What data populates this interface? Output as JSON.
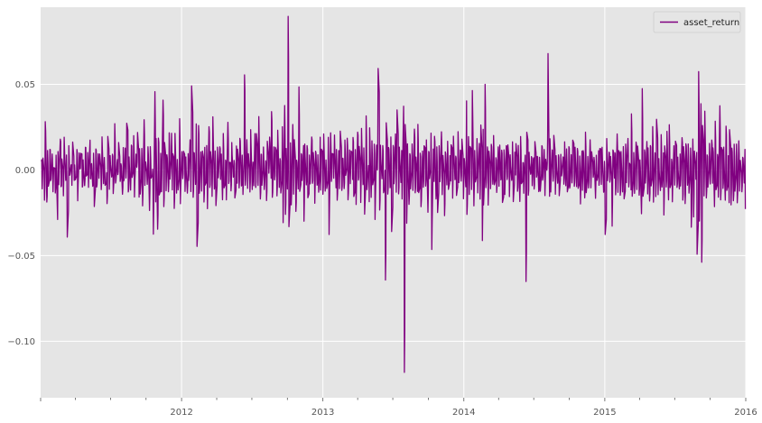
{
  "chart_data": {
    "type": "line",
    "title": "",
    "xlabel": "",
    "ylabel": "",
    "xlim": [
      "2011-01-01",
      "2016-01-01"
    ],
    "ylim": [
      -0.133,
      0.095
    ],
    "grid": true,
    "legend_position": "top-right",
    "y_ticks": [
      {
        "value": 0.05,
        "label": "0.05"
      },
      {
        "value": 0.0,
        "label": "0.00"
      },
      {
        "value": -0.05,
        "label": "−0.05"
      },
      {
        "value": -0.1,
        "label": "−0.10"
      }
    ],
    "x_major_ticks": [
      {
        "value": "2012-01-01",
        "label": "2012"
      },
      {
        "value": "2013-01-01",
        "label": "2013"
      },
      {
        "value": "2014-01-01",
        "label": "2014"
      },
      {
        "value": "2015-01-01",
        "label": "2015"
      },
      {
        "value": "2016-01-01",
        "label": "2016"
      }
    ],
    "series": [
      {
        "name": "asset_return",
        "color": "#800080",
        "x_start": "2011-01-03",
        "x_end": "2015-12-31",
        "frequency": "business-daily",
        "values": [
          0.008,
          -0.01,
          0.007,
          -0.022,
          0.033,
          -0.02,
          0.012,
          -0.015,
          0.016,
          -0.008,
          0.01,
          -0.012,
          0.006,
          -0.019,
          0.014,
          -0.034,
          0.009,
          -0.006,
          0.02,
          -0.011,
          0.005,
          -0.015,
          0.022,
          -0.009,
          0.011,
          -0.044,
          0.017,
          -0.007,
          0.009,
          -0.013,
          0.021,
          -0.011,
          0.003,
          -0.008,
          0.016,
          -0.018,
          0.01,
          -0.003,
          0.014,
          -0.011,
          0.007,
          -0.016,
          0.018,
          -0.006,
          0.012,
          -0.013,
          0.024,
          -0.008,
          0.004,
          -0.01,
          0.009,
          -0.02,
          0.015,
          -0.012,
          0.008,
          -0.004,
          0.013,
          -0.017,
          0.02,
          -0.009,
          0.011,
          -0.014,
          0.006,
          -0.021,
          0.017,
          -0.01,
          0.009,
          -0.007,
          0.014,
          -0.016,
          0.03,
          -0.012,
          0.008,
          -0.005,
          0.019,
          -0.013,
          0.01,
          -0.02,
          0.015,
          -0.006,
          0.012,
          -0.009,
          0.031,
          -0.014,
          0.007,
          -0.011,
          0.018,
          -0.008,
          0.022,
          -0.017,
          0.012,
          -0.004,
          0.026,
          -0.019,
          0.01,
          -0.012,
          0.014,
          -0.024,
          0.028,
          -0.008,
          0.006,
          -0.013,
          0.021,
          -0.027,
          0.016,
          -0.01,
          0.012,
          -0.054,
          0.059,
          -0.03,
          0.018,
          -0.038,
          0.022,
          -0.015,
          0.01,
          -0.02,
          0.048,
          -0.025,
          0.017,
          -0.012,
          0.014,
          -0.019,
          0.024,
          -0.009,
          0.03,
          -0.018,
          0.011,
          -0.024,
          0.02,
          -0.012,
          0.008,
          -0.016,
          0.031,
          -0.021,
          0.013,
          -0.01,
          0.018,
          -0.015,
          0.012,
          -0.022,
          0.016,
          -0.008,
          0.021,
          -0.013,
          0.051,
          -0.02,
          0.014,
          -0.011,
          0.033,
          -0.056,
          0.033,
          -0.017,
          0.012,
          -0.014,
          0.019,
          -0.026,
          0.015,
          -0.009,
          0.013,
          -0.021,
          0.028,
          -0.012,
          0.01,
          -0.017,
          0.036,
          -0.015,
          0.012,
          -0.024,
          0.017,
          -0.011,
          0.021,
          -0.008,
          0.014,
          -0.016,
          0.022,
          -0.013,
          0.01,
          -0.019,
          0.03,
          -0.012,
          0.009,
          -0.015,
          0.018,
          -0.01,
          0.012,
          -0.022,
          0.016,
          -0.008,
          0.011,
          -0.014,
          0.021,
          -0.01,
          0.008,
          -0.016,
          0.062,
          -0.012,
          0.018,
          -0.011,
          0.014,
          -0.02,
          0.026,
          -0.013,
          0.009,
          -0.018,
          0.022,
          -0.012,
          0.019,
          -0.009,
          0.034,
          -0.021,
          0.014,
          -0.01,
          0.016,
          -0.017,
          0.012,
          -0.023,
          0.02,
          -0.011,
          0.028,
          -0.014,
          0.037,
          -0.016,
          0.013,
          -0.01,
          0.017,
          -0.018,
          0.024,
          -0.009,
          0.011,
          -0.02,
          0.032,
          -0.041,
          0.051,
          -0.035,
          0.014,
          -0.012,
          0.089,
          -0.032,
          0.018,
          -0.024,
          0.026,
          -0.015,
          0.022,
          -0.03,
          0.012,
          -0.019,
          0.058,
          -0.02,
          0.016,
          -0.011,
          0.022,
          -0.029,
          0.015,
          -0.012,
          0.018,
          -0.017,
          0.009,
          -0.014,
          0.024,
          -0.01,
          0.012,
          -0.021,
          0.016,
          -0.013,
          0.011,
          -0.018,
          0.026,
          -0.009,
          0.014,
          -0.016,
          0.02,
          -0.011,
          0.008,
          -0.015,
          0.022,
          -0.043,
          0.026,
          -0.012,
          0.016,
          -0.009,
          0.027,
          -0.018,
          0.012,
          -0.02,
          0.015,
          -0.011,
          0.024,
          -0.016,
          0.011,
          -0.013,
          0.019,
          -0.01,
          0.026,
          -0.022,
          0.013,
          -0.009,
          0.017,
          -0.012,
          0.021,
          -0.016,
          0.011,
          -0.019,
          0.025,
          -0.008,
          0.014,
          -0.021,
          0.029,
          -0.013,
          0.016,
          -0.034,
          0.04,
          -0.018,
          0.012,
          -0.026,
          0.022,
          -0.015,
          0.018,
          -0.012,
          0.021,
          -0.031,
          0.016,
          -0.01,
          0.072,
          -0.028,
          0.017,
          -0.013,
          0.022,
          -0.018,
          0.011,
          -0.064,
          0.027,
          -0.018,
          0.016,
          -0.012,
          0.021,
          -0.037,
          0.018,
          -0.012,
          0.023,
          -0.018,
          0.044,
          -0.02,
          0.014,
          -0.01,
          0.017,
          -0.015,
          0.041,
          -0.124,
          0.026,
          -0.032,
          0.018,
          -0.025,
          0.015,
          -0.013,
          0.019,
          -0.021,
          0.033,
          -0.017,
          0.012,
          -0.024,
          0.026,
          -0.016,
          0.013,
          -0.022,
          0.011,
          -0.015,
          0.018,
          -0.012,
          0.02,
          -0.026,
          0.015,
          -0.011,
          0.031,
          -0.055,
          0.018,
          -0.014,
          0.021,
          -0.018,
          0.012,
          -0.024,
          0.016,
          -0.01,
          0.022,
          -0.015,
          0.013,
          -0.034,
          0.017,
          -0.012,
          0.022,
          -0.019,
          0.015,
          -0.011,
          0.018,
          -0.016,
          0.02,
          -0.009,
          0.012,
          -0.017,
          0.024,
          -0.013,
          0.016,
          -0.01,
          0.021,
          -0.018,
          0.013,
          -0.022,
          0.051,
          -0.026,
          0.018,
          -0.012,
          0.016,
          -0.015,
          0.048,
          -0.021,
          0.014,
          -0.011,
          0.019,
          -0.016,
          0.022,
          -0.029,
          0.044,
          -0.054,
          0.032,
          -0.019,
          0.051,
          -0.013,
          0.018,
          -0.021,
          0.012,
          -0.016,
          0.02,
          -0.011,
          0.023,
          -0.015,
          0.013,
          -0.018,
          0.016,
          -0.012,
          0.021,
          -0.009,
          0.014,
          -0.02,
          0.011,
          -0.013,
          0.017,
          -0.008,
          0.015,
          -0.016,
          0.012,
          -0.011,
          0.019,
          -0.022,
          0.014,
          -0.009,
          0.016,
          -0.014,
          0.012,
          -0.018,
          0.021,
          -0.011,
          0.009,
          -0.015,
          0.017,
          -0.079,
          0.03,
          -0.018,
          0.012,
          -0.009,
          0.014,
          -0.013,
          0.009,
          -0.011,
          0.016,
          -0.008,
          0.011,
          -0.014,
          0.007,
          -0.012,
          0.018,
          -0.009,
          0.013,
          -0.016,
          0.01,
          -0.012,
          0.082,
          -0.02,
          0.016,
          -0.011,
          0.013,
          -0.009,
          0.019,
          -0.014,
          0.01,
          -0.012,
          0.015,
          -0.017,
          0.011,
          -0.009,
          0.014,
          -0.013,
          0.02,
          -0.008,
          0.012,
          -0.016,
          0.017,
          -0.011,
          0.009,
          -0.013,
          0.022,
          -0.012,
          0.014,
          -0.01,
          0.018,
          -0.015,
          0.011,
          -0.024,
          0.016,
          -0.009,
          0.013,
          -0.018,
          0.021,
          -0.012,
          0.01,
          -0.014,
          0.017,
          -0.011,
          0.013,
          -0.009,
          0.015,
          -0.02,
          0.012,
          -0.014,
          0.019,
          -0.011,
          0.016,
          -0.008,
          0.014,
          -0.017,
          0.011,
          -0.042,
          0.02,
          -0.012,
          0.015,
          -0.01,
          0.013,
          -0.038,
          0.017,
          -0.009,
          0.012,
          -0.015,
          0.02,
          -0.011,
          0.014,
          -0.017,
          0.01,
          -0.013,
          0.018,
          -0.022,
          0.015,
          -0.01,
          0.024,
          -0.016,
          0.012,
          -0.019,
          0.03,
          -0.014,
          0.011,
          -0.017,
          0.021,
          -0.012,
          0.016,
          -0.02,
          0.013,
          -0.035,
          0.056,
          -0.024,
          0.018,
          -0.013,
          0.021,
          -0.016,
          0.012,
          -0.022,
          0.017,
          -0.011,
          0.026,
          -0.018,
          0.014,
          -0.021,
          0.032,
          -0.015,
          0.011,
          -0.019,
          0.023,
          -0.013,
          0.017,
          -0.024,
          0.015,
          -0.012,
          0.021,
          -0.018,
          0.029,
          -0.014,
          0.012,
          -0.021,
          0.017,
          -0.016,
          0.024,
          -0.013,
          0.011,
          -0.02,
          0.016,
          -0.012,
          0.022,
          -0.018,
          0.014,
          -0.025,
          0.019,
          -0.011,
          0.016,
          -0.014,
          0.021,
          -0.042,
          0.023,
          -0.032,
          0.016,
          -0.012,
          0.02,
          -0.051,
          0.057,
          -0.03,
          0.044,
          -0.06,
          0.026,
          -0.018,
          0.04,
          -0.022,
          0.015,
          -0.013,
          0.02,
          -0.017,
          0.026,
          -0.012,
          0.016,
          -0.021,
          0.029,
          -0.015,
          0.013,
          -0.019,
          0.041,
          -0.024,
          0.018,
          -0.014,
          0.016,
          -0.022,
          0.034,
          -0.017,
          0.012,
          -0.025,
          0.022,
          -0.018,
          0.015,
          -0.02,
          0.014,
          -0.012,
          0.019,
          -0.024,
          0.017,
          -0.013,
          0.009,
          -0.019,
          0.014,
          -0.011,
          0.018,
          -0.021
        ]
      }
    ]
  }
}
